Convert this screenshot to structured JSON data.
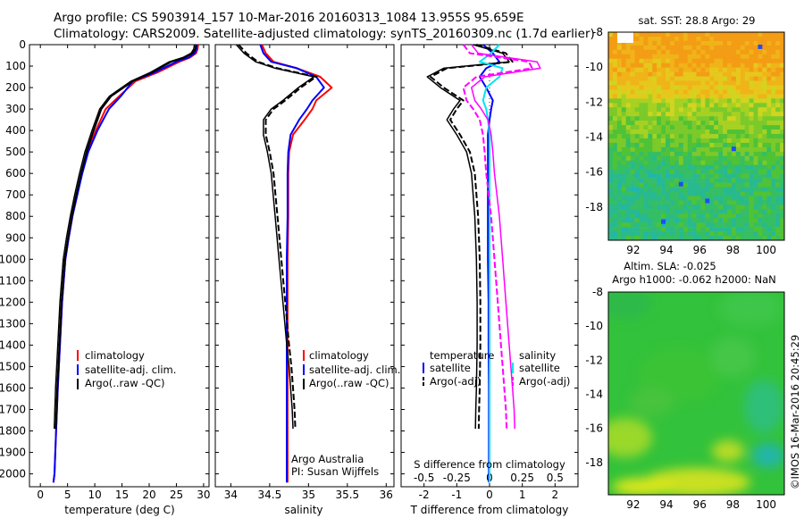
{
  "header": {
    "title_line1": "Argo profile: CS 5903914_157 10-Mar-2016 20160313_1084 13.955S 95.659E",
    "title_line2": "Climatology: CARS2009. Satellite-adjusted climatology: synTS_20160309.nc (1.7d earlier)"
  },
  "colors": {
    "climatology": "#ff0000",
    "satellite_clim": "#0000ff",
    "argo": "#000000",
    "salinity_diff": "#ff00ff",
    "salinity_sat": "#00e5ee"
  },
  "shared": {
    "depth_ticks": [
      0,
      100,
      200,
      300,
      400,
      500,
      600,
      700,
      800,
      900,
      1000,
      1100,
      1200,
      1300,
      1400,
      1500,
      1600,
      1700,
      1800,
      1900,
      2000
    ],
    "depth_range": [
      0,
      2060
    ]
  },
  "panels": {
    "temperature": {
      "xlabel": "temperature (deg C)",
      "xticks": [
        "0",
        "5",
        "10",
        "15",
        "20",
        "25",
        "30"
      ],
      "legend": [
        "climatology",
        "satellite-adj. clim.",
        "Argo(..raw -QC)"
      ]
    },
    "salinity": {
      "xlabel": "salinity",
      "xticks": [
        "34",
        "34.5",
        "35",
        "35.5",
        "36"
      ],
      "legend": [
        "climatology",
        "satellite-adj. clim.",
        "Argo(..raw -QC)"
      ],
      "credit1": "Argo Australia",
      "credit2": "PI: Susan Wijffels"
    },
    "difference": {
      "xlabel": "T difference from climatology",
      "top_label": "S difference from climatology",
      "t_xticks": [
        "-2",
        "-1",
        "0",
        "1",
        "2"
      ],
      "s_xticks": [
        "-0.5",
        "-0.25",
        "0",
        "0.25",
        "0.5"
      ],
      "legend_temp_title": "temperature",
      "legend_sal_title": "salinity",
      "legend_items": [
        "satellite",
        "Argo(-adj)"
      ]
    },
    "sst_map": {
      "title": "sat. SST: 28.8 Argo: 29",
      "yticks": [
        "-8",
        "-10",
        "-12",
        "-14",
        "-16",
        "-18"
      ],
      "xticks": [
        "92",
        "94",
        "96",
        "98",
        "100"
      ]
    },
    "sla_map": {
      "title1": "Altim. SLA: -0.025",
      "title2": "Argo h1000: -0.062 h2000: NaN",
      "yticks": [
        "-8",
        "-10",
        "-12",
        "-14",
        "-16",
        "-18"
      ],
      "xticks": [
        "92",
        "94",
        "96",
        "98",
        "100"
      ]
    }
  },
  "footer": {
    "stamp": "©IMOS 16-Mar-2016 20:45:29"
  },
  "chart_data": [
    {
      "type": "line",
      "panel": "temperature",
      "xlabel": "temperature (deg C)",
      "ylabel": "",
      "xlim": [
        -2,
        31
      ],
      "ylim": [
        2060,
        0
      ],
      "y_inverted": true,
      "series": [
        {
          "name": "climatology",
          "color": "#ff0000",
          "x": [
            29.0,
            28.9,
            28.6,
            27.5,
            25.5,
            21.5,
            17.5,
            14.5,
            12.0,
            10.2,
            8.7,
            7.6,
            6.7,
            5.9,
            5.2,
            4.6,
            4.0,
            3.6,
            3.2,
            2.9,
            2.6,
            2.4
          ],
          "y": [
            0,
            20,
            40,
            60,
            80,
            130,
            170,
            240,
            300,
            400,
            500,
            600,
            700,
            800,
            900,
            1000,
            1200,
            1400,
            1600,
            1800,
            2000,
            2040
          ]
        },
        {
          "name": "satellite-adj. clim.",
          "color": "#0000ff",
          "x": [
            28.8,
            28.7,
            28.4,
            27.2,
            25.0,
            21.0,
            17.0,
            14.8,
            12.6,
            10.5,
            8.8,
            7.7,
            6.8,
            5.9,
            5.2,
            4.6,
            4.0,
            3.6,
            3.2,
            2.9,
            2.6,
            2.4
          ],
          "y": [
            0,
            20,
            40,
            60,
            80,
            130,
            170,
            240,
            300,
            400,
            500,
            600,
            700,
            800,
            900,
            1000,
            1200,
            1400,
            1600,
            1800,
            2000,
            2040
          ]
        },
        {
          "name": "Argo(..raw -QC)",
          "color": "#000000",
          "x": [
            28.6,
            28.5,
            28.0,
            26.5,
            24.0,
            20.5,
            17.0,
            13.0,
            11.2,
            9.8,
            8.5,
            7.5,
            6.6,
            5.8,
            5.1,
            4.5,
            3.9,
            3.5,
            3.1,
            2.85
          ],
          "y": [
            0,
            20,
            40,
            60,
            80,
            130,
            170,
            240,
            300,
            400,
            500,
            600,
            700,
            800,
            900,
            1000,
            1200,
            1400,
            1600,
            1790
          ]
        }
      ]
    },
    {
      "type": "line",
      "panel": "salinity",
      "xlabel": "salinity",
      "ylabel": "",
      "xlim": [
        33.8,
        36.1
      ],
      "ylim": [
        2060,
        0
      ],
      "y_inverted": true,
      "series": [
        {
          "name": "climatology",
          "color": "#ff0000",
          "x": [
            34.4,
            34.45,
            34.55,
            34.85,
            35.15,
            35.3,
            35.1,
            35.05,
            34.95,
            34.8,
            34.75,
            34.74,
            34.74,
            34.73,
            34.73,
            34.73,
            34.73,
            34.73,
            34.73,
            34.73
          ],
          "y": [
            0,
            40,
            80,
            110,
            150,
            200,
            260,
            300,
            350,
            420,
            500,
            600,
            800,
            1000,
            1200,
            1400,
            1600,
            1800,
            2000,
            2040
          ]
        },
        {
          "name": "satellite-adj. clim.",
          "color": "#0000ff",
          "x": [
            34.38,
            34.42,
            34.52,
            34.85,
            35.1,
            35.2,
            35.05,
            34.98,
            34.88,
            34.77,
            34.74,
            34.73,
            34.73,
            34.72,
            34.72,
            34.72,
            34.72,
            34.72,
            34.72,
            34.72
          ],
          "y": [
            0,
            40,
            80,
            110,
            150,
            200,
            260,
            300,
            350,
            420,
            500,
            600,
            800,
            1000,
            1200,
            1400,
            1600,
            1800,
            2000,
            2040
          ]
        },
        {
          "name": "Argo(..raw -QC)",
          "color": "#000000",
          "x": [
            34.1,
            34.2,
            34.35,
            34.6,
            35.1,
            34.9,
            34.7,
            34.55,
            34.45,
            34.45,
            34.5,
            34.55,
            34.6,
            34.65,
            34.7,
            34.75,
            34.78,
            34.8,
            34.82,
            34.83
          ],
          "y": [
            0,
            40,
            80,
            110,
            150,
            200,
            260,
            300,
            350,
            420,
            500,
            600,
            800,
            1000,
            1200,
            1400,
            1500,
            1600,
            1700,
            1790
          ]
        }
      ]
    },
    {
      "type": "line",
      "panel": "difference",
      "xlabel": "T difference from climatology",
      "ylabel": "",
      "xlim": [
        -2.7,
        2.7
      ],
      "ylim": [
        2060,
        0
      ],
      "y_inverted": true,
      "series": [
        {
          "name": "satellite",
          "group": "temperature",
          "color": "#0000ff",
          "x": [
            -0.2,
            0.1,
            0.3,
            -0.1,
            -0.3,
            -0.1,
            0.1,
            0.05,
            0.0,
            -0.05,
            -0.05,
            -0.05,
            -0.05,
            -0.05,
            -0.03,
            -0.03,
            -0.02,
            -0.02,
            -0.02,
            -0.02
          ],
          "y": [
            0,
            40,
            80,
            110,
            150,
            200,
            260,
            300,
            350,
            420,
            500,
            600,
            800,
            1000,
            1200,
            1400,
            1600,
            1800,
            2000,
            2040
          ]
        },
        {
          "name": "Argo(-adj)",
          "group": "temperature",
          "color": "#000000",
          "x": [
            -0.4,
            0.5,
            0.7,
            -1.3,
            -1.8,
            -1.4,
            -0.8,
            -1.0,
            -1.2,
            -0.9,
            -0.6,
            -0.45,
            -0.35,
            -0.3,
            -0.28,
            -0.28,
            -0.3,
            -0.32,
            -0.33
          ],
          "y": [
            0,
            40,
            80,
            110,
            150,
            200,
            260,
            300,
            350,
            420,
            500,
            600,
            800,
            1000,
            1200,
            1400,
            1600,
            1700,
            1790
          ]
        },
        {
          "name": "satellite",
          "group": "salinity",
          "color": "#00e5ee",
          "x": [
            0.3,
            0.05,
            -0.3,
            0.4,
            0.3,
            -0.1,
            -0.2,
            -0.1,
            -0.05,
            0.0,
            0.0,
            0.0,
            0.0,
            0.0,
            0.0,
            0.0,
            0.0,
            0.0,
            0.0,
            0.0
          ],
          "y": [
            0,
            40,
            80,
            110,
            150,
            200,
            260,
            300,
            350,
            420,
            500,
            600,
            800,
            1000,
            1200,
            1400,
            1600,
            1800,
            2000,
            2040
          ]
        },
        {
          "name": "Argo(-adj)",
          "group": "salinity",
          "color": "#ff00ff",
          "x": [
            -0.8,
            -0.6,
            1.2,
            1.3,
            -0.4,
            -0.8,
            -0.7,
            -0.5,
            -0.3,
            -0.2,
            -0.15,
            -0.1,
            0.05,
            0.15,
            0.25,
            0.35,
            0.45,
            0.5,
            0.52
          ],
          "y": [
            0,
            40,
            80,
            110,
            150,
            200,
            260,
            300,
            350,
            420,
            500,
            600,
            800,
            1000,
            1200,
            1400,
            1600,
            1700,
            1790
          ]
        }
      ]
    },
    {
      "type": "heatmap",
      "panel": "sst_map",
      "title": "sat. SST: 28.8 Argo: 29",
      "xlim": [
        90.5,
        101.1
      ],
      "ylim": [
        -19.9,
        -8
      ],
      "xticks": [
        92,
        94,
        96,
        98,
        100
      ],
      "yticks": [
        -8,
        -10,
        -12,
        -14,
        -16,
        -18
      ],
      "marker": {
        "lon": 95.659,
        "lat": -13.955
      }
    },
    {
      "type": "heatmap",
      "panel": "sla_map",
      "title": "Altim. SLA: -0.025",
      "xlim": [
        90.5,
        101.1
      ],
      "ylim": [
        -19.9,
        -8
      ],
      "xticks": [
        92,
        94,
        96,
        98,
        100
      ],
      "yticks": [
        -8,
        -10,
        -12,
        -14,
        -16,
        -18
      ],
      "marker": {
        "lon": 95.659,
        "lat": -13.955
      }
    }
  ]
}
